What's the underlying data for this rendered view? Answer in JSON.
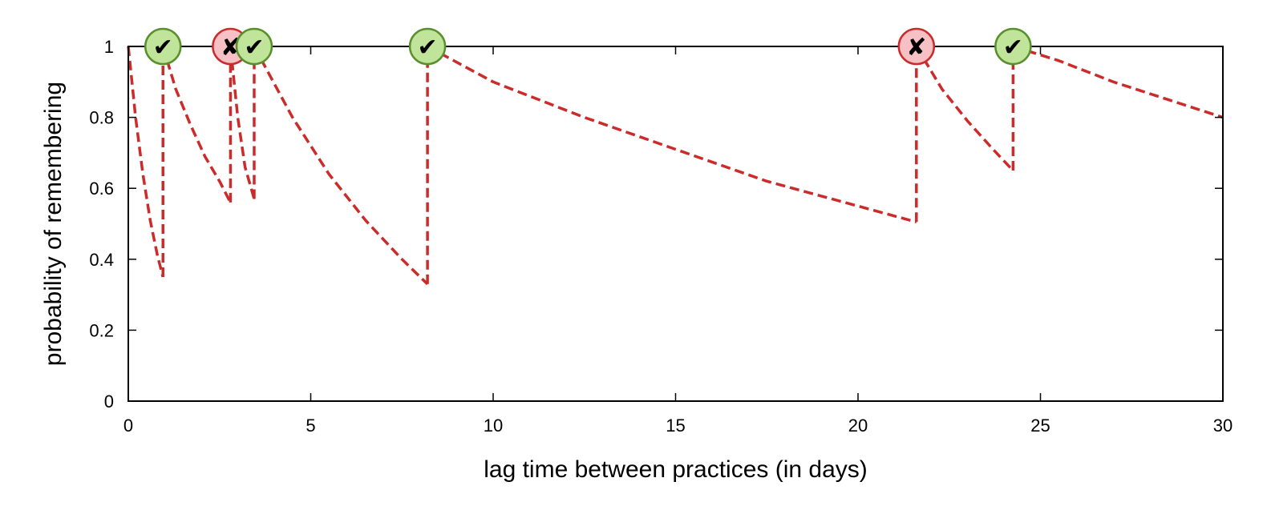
{
  "chart_data": {
    "type": "line",
    "title": "",
    "xlabel": "lag time between practices (in days)",
    "ylabel": "probability of remembering",
    "xlim": [
      0,
      30
    ],
    "ylim": [
      0,
      1
    ],
    "xticks": [
      0,
      5,
      10,
      15,
      20,
      25,
      30
    ],
    "xtick_labels": [
      "0",
      "5",
      "10",
      "15",
      "20",
      "25",
      "30"
    ],
    "yticks": [
      0,
      0.2,
      0.4,
      0.6,
      0.8,
      1
    ],
    "ytick_labels": [
      "0",
      "0.2",
      "0.4",
      "0.6",
      "0.8",
      "1"
    ],
    "grid": false,
    "legend": "none",
    "line_color": "#cc2b2b",
    "series": [
      {
        "segments": [
          {
            "x": [
              0.0,
              0.2,
              0.4,
              0.6,
              0.8,
              0.95
            ],
            "y": [
              1.0,
              0.8,
              0.64,
              0.51,
              0.41,
              0.35
            ]
          },
          {
            "x": [
              0.95,
              1.3,
              1.7,
              2.1,
              2.5,
              2.8
            ],
            "y": [
              1.0,
              0.88,
              0.78,
              0.69,
              0.62,
              0.56
            ]
          },
          {
            "x": [
              2.8,
              3.0,
              3.2,
              3.45
            ],
            "y": [
              1.0,
              0.8,
              0.66,
              0.57
            ]
          },
          {
            "x": [
              3.45,
              4.5,
              5.5,
              6.5,
              7.5,
              8.2
            ],
            "y": [
              1.0,
              0.8,
              0.64,
              0.51,
              0.4,
              0.33
            ]
          },
          {
            "x": [
              8.2,
              10.0,
              12.5,
              15.0,
              17.5,
              20.0,
              21.6
            ],
            "y": [
              1.0,
              0.9,
              0.8,
              0.71,
              0.62,
              0.55,
              0.505
            ]
          },
          {
            "x": [
              21.6,
              22.3,
              23.0,
              23.7,
              24.25
            ],
            "y": [
              1.0,
              0.88,
              0.79,
              0.71,
              0.65
            ]
          },
          {
            "x": [
              24.25,
              25.5,
              27.0,
              28.5,
              30.0
            ],
            "y": [
              1.0,
              0.96,
              0.9,
              0.85,
              0.8
            ]
          }
        ]
      }
    ],
    "practice_events": [
      {
        "x": 0.95,
        "result": "correct",
        "glyph": "✔"
      },
      {
        "x": 2.8,
        "result": "incorrect",
        "glyph": "✘"
      },
      {
        "x": 3.45,
        "result": "correct",
        "glyph": "✔"
      },
      {
        "x": 8.2,
        "result": "correct",
        "glyph": "✔"
      },
      {
        "x": 21.6,
        "result": "incorrect",
        "glyph": "✘"
      },
      {
        "x": 24.25,
        "result": "correct",
        "glyph": "✔"
      }
    ],
    "marker_colors": {
      "correct_fill": "#bfe49a",
      "correct_stroke": "#5a8f2e",
      "incorrect_fill": "#f6c0c4",
      "incorrect_stroke": "#cc2b2b"
    }
  }
}
